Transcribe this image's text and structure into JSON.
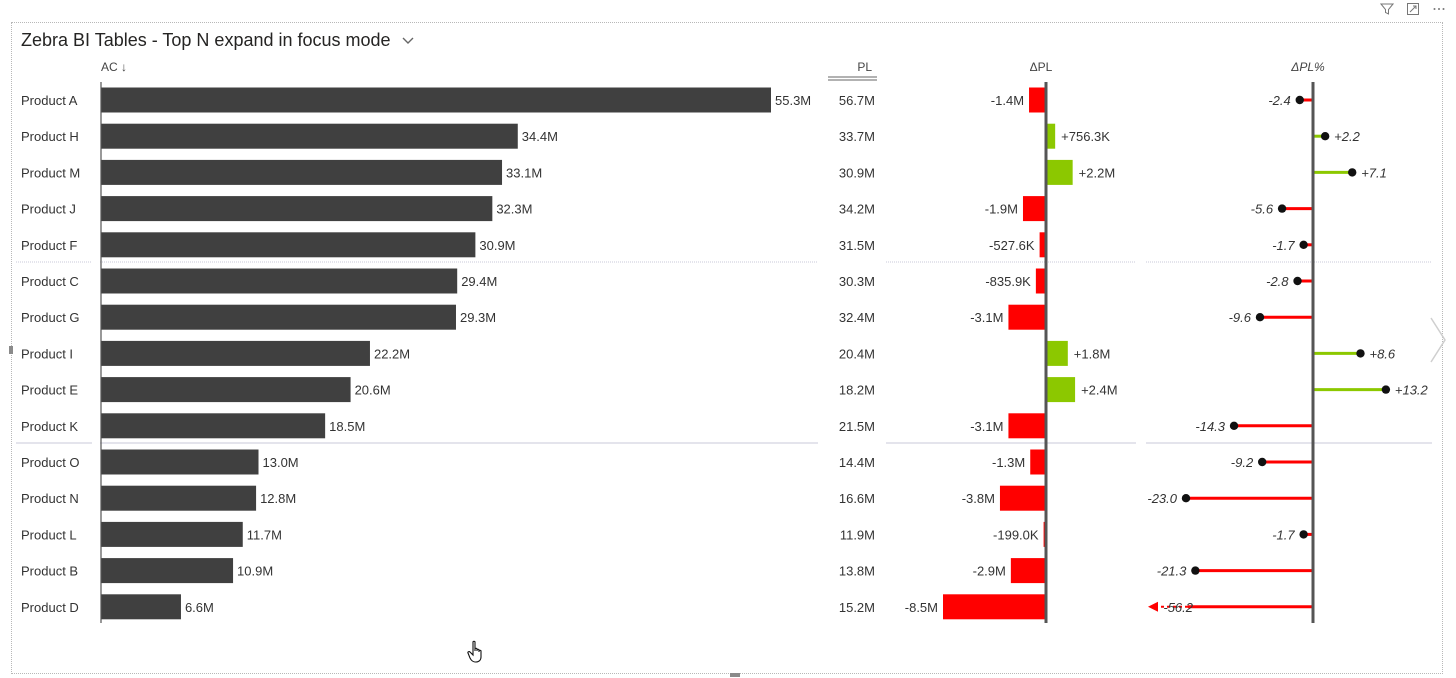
{
  "visual": {
    "title": "Zebra BI Tables - Top N expand in focus mode",
    "icons": [
      "filter-icon",
      "focus-mode-icon",
      "more-options-icon",
      "chevron-down-icon",
      "next-page-icon",
      "hand-cursor-icon"
    ]
  },
  "colors": {
    "ac_bar": "#404040",
    "positive": "#8cc800",
    "negative": "#ff0000",
    "axis": "#555555",
    "separator": "#c8c8d8"
  },
  "chart_data": {
    "type": "table",
    "columns": {
      "ac": "AC ↓",
      "pl": "PL",
      "delta_pl": "ΔPL",
      "delta_pl_pct": "ΔPL%"
    },
    "rows": [
      {
        "product": "Product A",
        "ac": 55.3,
        "ac_label": "55.3M",
        "pl_label": "56.7M",
        "dpl": -1.4,
        "dpl_label": "-1.4M",
        "dpct": -2.4,
        "dpct_label": "-2.4"
      },
      {
        "product": "Product H",
        "ac": 34.4,
        "ac_label": "34.4M",
        "pl_label": "33.7M",
        "dpl": 0.7563,
        "dpl_label": "+756.3K",
        "dpct": 2.2,
        "dpct_label": "+2.2"
      },
      {
        "product": "Product M",
        "ac": 33.1,
        "ac_label": "33.1M",
        "pl_label": "30.9M",
        "dpl": 2.2,
        "dpl_label": "+2.2M",
        "dpct": 7.1,
        "dpct_label": "+7.1"
      },
      {
        "product": "Product J",
        "ac": 32.3,
        "ac_label": "32.3M",
        "pl_label": "34.2M",
        "dpl": -1.9,
        "dpl_label": "-1.9M",
        "dpct": -5.6,
        "dpct_label": "-5.6"
      },
      {
        "product": "Product F",
        "ac": 30.9,
        "ac_label": "30.9M",
        "pl_label": "31.5M",
        "dpl": -0.5276,
        "dpl_label": "-527.6K",
        "dpct": -1.7,
        "dpct_label": "-1.7"
      },
      {
        "product": "Product C",
        "ac": 29.4,
        "ac_label": "29.4M",
        "pl_label": "30.3M",
        "dpl": -0.8359,
        "dpl_label": "-835.9K",
        "dpct": -2.8,
        "dpct_label": "-2.8"
      },
      {
        "product": "Product G",
        "ac": 29.3,
        "ac_label": "29.3M",
        "pl_label": "32.4M",
        "dpl": -3.1,
        "dpl_label": "-3.1M",
        "dpct": -9.6,
        "dpct_label": "-9.6"
      },
      {
        "product": "Product I",
        "ac": 22.2,
        "ac_label": "22.2M",
        "pl_label": "20.4M",
        "dpl": 1.8,
        "dpl_label": "+1.8M",
        "dpct": 8.6,
        "dpct_label": "+8.6"
      },
      {
        "product": "Product E",
        "ac": 20.6,
        "ac_label": "20.6M",
        "pl_label": "18.2M",
        "dpl": 2.4,
        "dpl_label": "+2.4M",
        "dpct": 13.2,
        "dpct_label": "+13.2"
      },
      {
        "product": "Product K",
        "ac": 18.5,
        "ac_label": "18.5M",
        "pl_label": "21.5M",
        "dpl": -3.1,
        "dpl_label": "-3.1M",
        "dpct": -14.3,
        "dpct_label": "-14.3"
      },
      {
        "product": "Product O",
        "ac": 13.0,
        "ac_label": "13.0M",
        "pl_label": "14.4M",
        "dpl": -1.3,
        "dpl_label": "-1.3M",
        "dpct": -9.2,
        "dpct_label": "-9.2"
      },
      {
        "product": "Product N",
        "ac": 12.8,
        "ac_label": "12.8M",
        "pl_label": "16.6M",
        "dpl": -3.8,
        "dpl_label": "-3.8M",
        "dpct": -23.0,
        "dpct_label": "-23.0"
      },
      {
        "product": "Product L",
        "ac": 11.7,
        "ac_label": "11.7M",
        "pl_label": "11.9M",
        "dpl": -0.199,
        "dpl_label": "-199.0K",
        "dpct": -1.7,
        "dpct_label": "-1.7"
      },
      {
        "product": "Product B",
        "ac": 10.9,
        "ac_label": "10.9M",
        "pl_label": "13.8M",
        "dpl": -2.9,
        "dpl_label": "-2.9M",
        "dpct": -21.3,
        "dpct_label": "-21.3"
      },
      {
        "product": "Product D",
        "ac": 6.6,
        "ac_label": "6.6M",
        "pl_label": "15.2M",
        "dpl": -8.5,
        "dpl_label": "-8.5M",
        "dpct": -56.2,
        "dpct_label": "-56.2",
        "dpct_outlier": true
      }
    ],
    "group_separators_after_rows": [
      5,
      10
    ]
  }
}
